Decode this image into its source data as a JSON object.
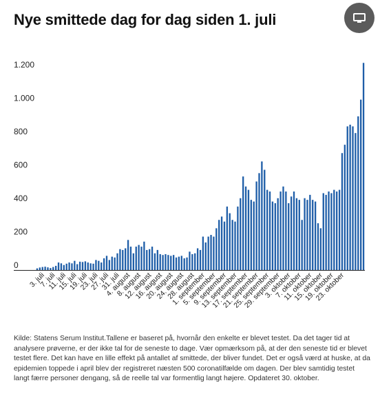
{
  "header": {
    "title": "Nye smittede dag for dag siden 1. juli",
    "screen_icon": "monitor-icon"
  },
  "footer": {
    "source": "Kilde: Statens Serum Institut.Tallene er baseret på, hvornår den enkelte er blevet testet. Da det tager tid at analysere prøverne, er der ikke tal for de seneste to dage. Vær opmærksom på, at der den seneste tid er blevet testet flere. Det kan have en lille effekt på antallet af smittede, der bliver fundet. Det er også værd at huske, at da epidemien toppede i april blev der registreret næsten 500 coronatilfælde om dagen. Der blev samtidig testet langt færre personer dengang, så de reelle tal var formentlig langt højere. Opdateret 30. oktober."
  },
  "colors": {
    "bar": "#1f5ea8",
    "axis": "#222222"
  },
  "chart_data": {
    "type": "bar",
    "title": "Nye smittede dag for dag siden 1. juli",
    "ylim": [
      0,
      1300
    ],
    "yticks": [
      0,
      200,
      400,
      600,
      800,
      1000,
      1200
    ],
    "ytick_labels": [
      "0",
      "200",
      "400",
      "600",
      "800",
      "1.000",
      "1.200"
    ],
    "grid": false,
    "xtick_labels": [
      {
        "index": 2,
        "label": "3. juli"
      },
      {
        "index": 6,
        "label": "7. juli"
      },
      {
        "index": 10,
        "label": "11. juli"
      },
      {
        "index": 14,
        "label": "15. juli"
      },
      {
        "index": 18,
        "label": "19. juli"
      },
      {
        "index": 22,
        "label": "23. juli"
      },
      {
        "index": 26,
        "label": "27. juli"
      },
      {
        "index": 30,
        "label": "31. juli"
      },
      {
        "index": 34,
        "label": "4. august"
      },
      {
        "index": 38,
        "label": "8. august"
      },
      {
        "index": 42,
        "label": "12. august"
      },
      {
        "index": 46,
        "label": "16. august"
      },
      {
        "index": 50,
        "label": "20. august"
      },
      {
        "index": 54,
        "label": "24. august"
      },
      {
        "index": 58,
        "label": "28. august"
      },
      {
        "index": 62,
        "label": "1. september"
      },
      {
        "index": 66,
        "label": "5. september"
      },
      {
        "index": 70,
        "label": "9. september"
      },
      {
        "index": 74,
        "label": "13. september"
      },
      {
        "index": 78,
        "label": "17. september"
      },
      {
        "index": 82,
        "label": "21. september"
      },
      {
        "index": 86,
        "label": "25. september"
      },
      {
        "index": 90,
        "label": "29. september"
      },
      {
        "index": 94,
        "label": "3. oktober"
      },
      {
        "index": 98,
        "label": "7. oktober"
      },
      {
        "index": 102,
        "label": "11. oktober"
      },
      {
        "index": 106,
        "label": "15. oktober"
      },
      {
        "index": 110,
        "label": "19. oktober"
      },
      {
        "index": 114,
        "label": "23. oktober"
      }
    ],
    "values": [
      10,
      15,
      18,
      20,
      16,
      12,
      18,
      25,
      45,
      40,
      30,
      38,
      45,
      40,
      55,
      35,
      50,
      48,
      52,
      45,
      40,
      38,
      60,
      55,
      45,
      70,
      85,
      60,
      80,
      75,
      100,
      125,
      120,
      130,
      180,
      140,
      100,
      140,
      150,
      140,
      170,
      120,
      125,
      140,
      100,
      120,
      95,
      90,
      95,
      90,
      85,
      90,
      75,
      80,
      85,
      70,
      75,
      110,
      95,
      100,
      130,
      120,
      200,
      165,
      200,
      210,
      200,
      250,
      300,
      320,
      290,
      380,
      340,
      300,
      290,
      380,
      430,
      560,
      500,
      480,
      420,
      410,
      530,
      580,
      650,
      600,
      480,
      470,
      410,
      400,
      430,
      470,
      500,
      470,
      400,
      440,
      470,
      430,
      420,
      300,
      430,
      420,
      450,
      420,
      410,
      280,
      250,
      460,
      450,
      470,
      460,
      480,
      470,
      480,
      700,
      750,
      860,
      870,
      860,
      820,
      920,
      1020,
      1240
    ]
  }
}
